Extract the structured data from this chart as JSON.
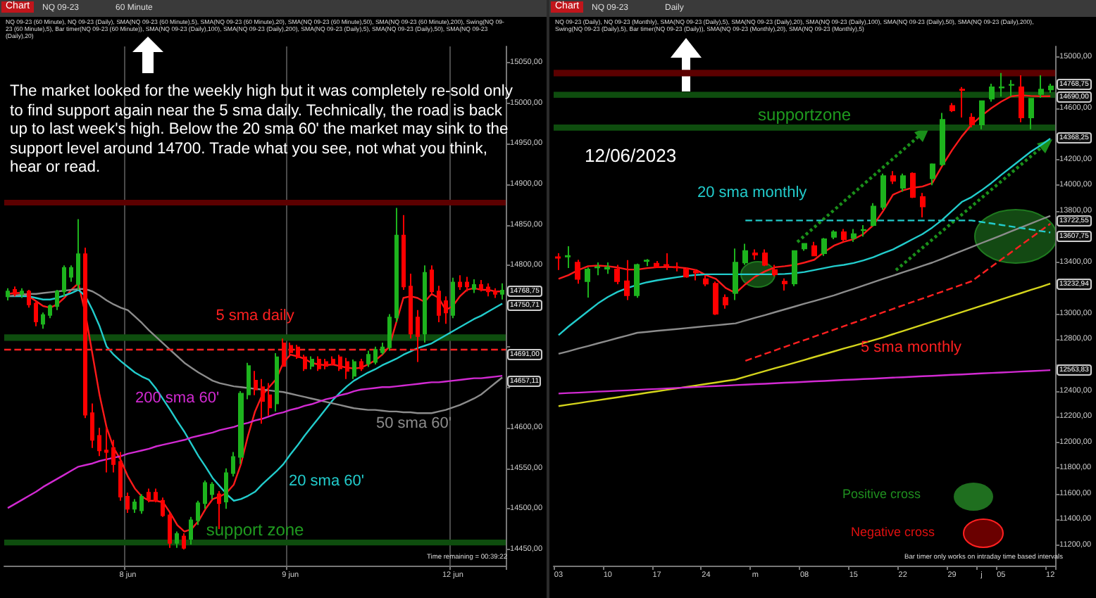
{
  "chart_data": [
    {
      "type": "candlestick",
      "categories": [
        null,
        null,
        null,
        null,
        null,
        null,
        null,
        null,
        null,
        null,
        null,
        null,
        null,
        null,
        null,
        null,
        null,
        "8 jun",
        null,
        null,
        null,
        null,
        null,
        null,
        null,
        null,
        null,
        null,
        null,
        null,
        null,
        null,
        null,
        null,
        null,
        null,
        null,
        null,
        null,
        null,
        "9 jun",
        null,
        null,
        null,
        null,
        null,
        null,
        null,
        null,
        null,
        null,
        null,
        null,
        null,
        null,
        null,
        null,
        null,
        null,
        null,
        null,
        null,
        null,
        "12 jun",
        null,
        null,
        null,
        null,
        null,
        null,
        null
      ],
      "ohlc": [
        [
          14762,
          14772,
          14757,
          14768
        ],
        [
          14770,
          14774,
          14762,
          14765
        ],
        [
          14765,
          14772,
          14760,
          14768
        ],
        [
          14768,
          14770,
          14748,
          14752
        ],
        [
          14753,
          14756,
          14725,
          14731
        ],
        [
          14728,
          14742,
          14722,
          14739
        ],
        [
          14739,
          14752,
          14735,
          14750
        ],
        [
          14750,
          14770,
          14745,
          14768
        ],
        [
          14768,
          14800,
          14762,
          14797
        ],
        [
          14786,
          14800,
          14780,
          14797
        ],
        [
          14777,
          14857,
          14770,
          14814
        ],
        [
          14814,
          14822,
          14612,
          14616
        ],
        [
          14618,
          14630,
          14575,
          14585
        ],
        [
          14590,
          14600,
          14565,
          14572
        ],
        [
          14572,
          14600,
          14545,
          14570
        ],
        [
          14575,
          14585,
          14545,
          14555
        ],
        [
          14558,
          14570,
          14510,
          14515
        ],
        [
          14515,
          14520,
          14495,
          14500
        ],
        [
          14500,
          14512,
          14495,
          14508
        ],
        [
          14498,
          14518,
          14494,
          14515
        ],
        [
          14520,
          14525,
          14508,
          14512
        ],
        [
          14520,
          14525,
          14508,
          14510
        ],
        [
          14510,
          14514,
          14490,
          14492
        ],
        [
          14492,
          14495,
          14452,
          14458
        ],
        [
          14458,
          14472,
          14452,
          14469
        ],
        [
          14466,
          14470,
          14450,
          14452
        ],
        [
          14463,
          14490,
          14456,
          14486
        ],
        [
          14486,
          14510,
          14480,
          14507
        ],
        [
          14507,
          14535,
          14500,
          14532
        ],
        [
          14518,
          14533,
          14512,
          14530
        ],
        [
          14518,
          14522,
          14475,
          14507
        ],
        [
          14509,
          14550,
          14500,
          14544
        ],
        [
          14544,
          14570,
          14540,
          14564
        ],
        [
          14564,
          14645,
          14555,
          14642
        ],
        [
          14641,
          14680,
          14635,
          14676
        ],
        [
          14658,
          14670,
          14640,
          14647
        ],
        [
          14650,
          14660,
          14605,
          14633
        ],
        [
          14640,
          14655,
          14615,
          14625
        ],
        [
          14630,
          14692,
          14620,
          14687
        ],
        [
          14704,
          14710,
          14676,
          14676
        ],
        [
          14701,
          14705,
          14690,
          14693
        ],
        [
          14699,
          14702,
          14685,
          14687
        ],
        [
          14687,
          14690,
          14670,
          14673
        ],
        [
          14676,
          14688,
          14672,
          14684
        ],
        [
          14684,
          14688,
          14670,
          14673
        ],
        [
          14681,
          14685,
          14672,
          14676
        ],
        [
          14684,
          14688,
          14677,
          14679
        ],
        [
          14687,
          14690,
          14670,
          14673
        ],
        [
          14681,
          14686,
          14660,
          14670
        ],
        [
          14664,
          14684,
          14660,
          14681
        ],
        [
          14681,
          14685,
          14670,
          14673
        ],
        [
          14679,
          14695,
          14675,
          14690
        ],
        [
          14681,
          14700,
          14678,
          14696
        ],
        [
          14693,
          14705,
          14690,
          14699
        ],
        [
          14699,
          14740,
          14695,
          14736
        ],
        [
          14736,
          14871,
          14730,
          14837
        ],
        [
          14837,
          14862,
          14770,
          14774
        ],
        [
          14774,
          14790,
          14710,
          14716
        ],
        [
          14736,
          14745,
          14681,
          14713
        ],
        [
          14716,
          14800,
          14705,
          14791
        ],
        [
          14794,
          14800,
          14765,
          14768
        ],
        [
          14768,
          14775,
          14730,
          14739
        ],
        [
          14756,
          14762,
          14728,
          14742
        ],
        [
          14739,
          14785,
          14735,
          14779
        ],
        [
          14779,
          14788,
          14770,
          14774
        ],
        [
          14779,
          14786,
          14768,
          14774
        ],
        [
          14771,
          14783,
          14766,
          14776
        ],
        [
          14776,
          14782,
          14768,
          14771
        ],
        [
          14773,
          14778,
          14762,
          14768
        ],
        [
          14768,
          14772,
          14760,
          14765
        ],
        [
          14765,
          14778,
          14758,
          14769
        ]
      ],
      "colors": [
        "#1db31d",
        "#ff0000",
        "#1db31d",
        "#ff0000",
        "#ff0000",
        "#1db31d",
        "#1db31d",
        "#1db31d",
        "#1db31d",
        "#1db31d",
        "#1db31d",
        "#ff0000",
        "#ff0000",
        "#ff0000",
        "#ff0000",
        "#ff0000",
        "#ff0000",
        "#ff0000",
        "#1db31d",
        "#1db31d",
        "#ff0000",
        "#ff0000",
        "#ff0000",
        "#ff0000",
        "#1db31d",
        "#ff0000",
        "#1db31d",
        "#1db31d",
        "#1db31d",
        "#1db31d",
        "#ff0000",
        "#1db31d",
        "#1db31d",
        "#1db31d",
        "#1db31d",
        "#ff0000",
        "#ff0000",
        "#ff0000",
        "#1db31d",
        "#ff0000",
        "#ff0000",
        "#ff0000",
        "#ff0000",
        "#1db31d",
        "#ff0000",
        "#ff0000",
        "#ff0000",
        "#ff0000",
        "#ff0000",
        "#1db31d",
        "#ff0000",
        "#1db31d",
        "#1db31d",
        "#1db31d",
        "#1db31d",
        "#1db31d",
        "#ff0000",
        "#ff0000",
        "#ff0000",
        "#1db31d",
        "#ff0000",
        "#ff0000",
        "#ff0000",
        "#1db31d",
        "#ff0000",
        "#ff0000",
        "#1db31d",
        "#ff0000",
        "#ff0000",
        "#ff0000",
        "#1db31d"
      ],
      "series": [
        {
          "type": "line",
          "color": "#ff1a1a",
          "values": [
            14765,
            14766,
            14766,
            14762,
            14756,
            14750,
            14748,
            14752,
            14760,
            14770,
            14778,
            14740,
            14690,
            14640,
            14600,
            14575,
            14560,
            14540,
            14525,
            14515,
            14510,
            14510,
            14508,
            14495,
            14480,
            14472,
            14475,
            14485,
            14500,
            14512,
            14515,
            14520,
            14530,
            14555,
            14590,
            14620,
            14640,
            14650,
            14660,
            14680,
            14690,
            14688,
            14685,
            14680,
            14678,
            14677,
            14678,
            14676,
            14674,
            14673,
            14674,
            14678,
            14683,
            14690,
            14700,
            14730,
            14760,
            14762,
            14760,
            14755,
            14765,
            14760,
            14745,
            14750,
            14762,
            14770,
            14772,
            14770,
            14770,
            14768,
            14768
          ]
        },
        {
          "type": "line",
          "name": "20 sma 60'",
          "color": "#22cccc",
          "values": [
            14762,
            14762,
            14762,
            14762,
            14760,
            14758,
            14758,
            14760,
            14763,
            14766,
            14770,
            14762,
            14745,
            14725,
            14700,
            14690,
            14682,
            14675,
            14668,
            14663,
            14659,
            14648,
            14635,
            14622,
            14608,
            14595,
            14580,
            14565,
            14552,
            14538,
            14528,
            14518,
            14510,
            14512,
            14516,
            14521,
            14530,
            14538,
            14546,
            14555,
            14567,
            14578,
            14590,
            14601,
            14612,
            14623,
            14634,
            14643,
            14651,
            14658,
            14663,
            14668,
            14672,
            14677,
            14681,
            14685,
            14690,
            14694,
            14698,
            14701,
            14704,
            14709,
            14714,
            14719,
            14724,
            14729,
            14734,
            14738,
            14743,
            14748,
            14753
          ]
        },
        {
          "type": "line",
          "name": "50 sma 60'",
          "color": "#8c8c8c",
          "values": [
            14762,
            14763,
            14764,
            14765,
            14765,
            14766,
            14767,
            14768,
            14769,
            14770,
            14771,
            14771,
            14768,
            14763,
            14757,
            14752,
            14748,
            14745,
            14737,
            14729,
            14720,
            14712,
            14704,
            14696,
            14688,
            14680,
            14674,
            14668,
            14663,
            14658,
            14655,
            14653,
            14651,
            14650,
            14649,
            14648,
            14647,
            14646,
            14645,
            14644,
            14642,
            14640,
            14638,
            14636,
            14634,
            14632,
            14630,
            14628,
            14626,
            14624,
            14623,
            14622,
            14622,
            14621,
            14620,
            14620,
            14619,
            14619,
            14618,
            14618,
            14618,
            14620,
            14622,
            14625,
            14628,
            14632,
            14636,
            14641,
            14648,
            14655,
            14662
          ]
        },
        {
          "type": "line",
          "name": "200 sma 60'",
          "color": "#d22ad2",
          "values": [
            14501,
            14506,
            14511,
            14516,
            14521,
            14527,
            14532,
            14537,
            14542,
            14547,
            14552,
            14554,
            14556,
            14559,
            14561,
            14563,
            14565,
            14568,
            14570,
            14572,
            14574,
            14577,
            14579,
            14581,
            14583,
            14585,
            14588,
            14590,
            14592,
            14594,
            14597,
            14599,
            14601,
            14604,
            14606,
            14609,
            14611,
            14614,
            14617,
            14619,
            14622,
            14624,
            14627,
            14629,
            14632,
            14635,
            14637,
            14640,
            14642,
            14645,
            14647,
            14648,
            14649,
            14650,
            14650,
            14651,
            14652,
            14653,
            14654,
            14655,
            14656,
            14656,
            14657,
            14658,
            14659,
            14660,
            14661,
            14661,
            14662,
            14663,
            14664
          ]
        }
      ],
      "ylim": [
        14430,
        15070
      ],
      "yticks": [
        {
          "value": 14450,
          "label": "14450,00"
        },
        {
          "value": 14500,
          "label": "14500,00"
        },
        {
          "value": 14550,
          "label": "14550,00"
        },
        {
          "value": 14600,
          "label": "14600,00"
        },
        {
          "value": 14650,
          "label": null
        },
        {
          "value": 14700,
          "label": null
        },
        {
          "value": 14750,
          "label": null
        },
        {
          "value": 14800,
          "label": "14800,00"
        },
        {
          "value": 14850,
          "label": "14850,00"
        },
        {
          "value": 14900,
          "label": "14900,00"
        },
        {
          "value": 14950,
          "label": "14950,00"
        },
        {
          "value": 15000,
          "label": "15000,00"
        },
        {
          "value": 15050,
          "label": "15050,00"
        }
      ],
      "grid": "x",
      "ref_lines": [
        {
          "axis": "y",
          "value": 14697,
          "label": "5 sma daily",
          "color": "#ff2020",
          "line_style": "dashed"
        }
      ],
      "bands": [
        {
          "axis": "y",
          "from": 14874,
          "to": 14881,
          "color": "#5c0000"
        },
        {
          "axis": "y",
          "from": 14707,
          "to": 14715,
          "color": "#0e4d0e"
        },
        {
          "axis": "y",
          "from": 14455,
          "to": 14462,
          "label": "support zone",
          "color": "#0e4d0e"
        }
      ],
      "annotations": [
        "Chart",
        "NQ 09-23",
        "60 Minute",
        "NQ 09-23 (60 Minute), NQ 09-23 (Daily), SMA(NQ 09-23 (60 Minute),5), SMA(NQ 09-23 (60 Minute),20), SMA(NQ 09-23 (60 Minute),50), SMA(NQ 09-23 (60 Minute),200), Swing(NQ 09-23 (60 Minute),5), Bar timer(NQ 09-23 (60 Minute)), SMA(NQ 09-23 (Daily),100), SMA(NQ 09-23 (Daily),200), SMA(NQ 09-23 (Daily),5), SMA(NQ 09-23 (Daily),50), SMA(NQ 09-23 (Daily),20)",
        "The market looked for the weekly high but it was completely re-sold only to find support again near the 5 sma daily. Technically, the road is back up to last week's high. Below the 20 sma 60' the market may sink to the support level around 14700. Trade what you see, not what you think, hear or read.",
        "Time remaining = 00:39:22",
        "14768,75",
        "14750,71",
        "14691,00",
        "14657,11"
      ]
    },
    {
      "type": "candlestick",
      "categories": [
        "03",
        null,
        null,
        null,
        null,
        "10",
        null,
        null,
        null,
        null,
        "17",
        null,
        null,
        null,
        null,
        "24",
        null,
        null,
        null,
        null,
        "m",
        null,
        null,
        null,
        null,
        "08",
        null,
        null,
        null,
        null,
        "15",
        null,
        null,
        null,
        null,
        "22",
        null,
        null,
        null,
        null,
        "29",
        null,
        null,
        "j",
        null,
        "05",
        null,
        null,
        null,
        null,
        "12"
      ],
      "ohlc": [
        [
          13440,
          13470,
          13340,
          13435
        ],
        [
          13445,
          13525,
          13355,
          13450
        ],
        [
          13398,
          13420,
          13234,
          13271
        ],
        [
          13253,
          13360,
          13126,
          13344
        ],
        [
          13360,
          13400,
          13300,
          13362
        ],
        [
          13350,
          13400,
          13310,
          13360
        ],
        [
          13344,
          13380,
          13230,
          13253
        ],
        [
          13253,
          13417,
          13107,
          13143
        ],
        [
          13143,
          13390,
          13125,
          13380
        ],
        [
          13410,
          13425,
          13370,
          13415
        ],
        [
          13390,
          13410,
          13360,
          13362
        ],
        [
          13380,
          13470,
          13340,
          13375
        ],
        [
          13364,
          13400,
          13330,
          13360
        ],
        [
          13344,
          13360,
          13280,
          13289
        ],
        [
          13330,
          13345,
          13260,
          13320
        ],
        [
          13270,
          13300,
          13215,
          13234
        ],
        [
          13234,
          13250,
          12990,
          13000
        ],
        [
          13125,
          13150,
          13040,
          13071
        ],
        [
          13161,
          13507,
          13107,
          13398
        ],
        [
          13398,
          13544,
          13380,
          13489
        ],
        [
          13470,
          13500,
          13420,
          13460
        ],
        [
          13471,
          13500,
          13370,
          13380
        ],
        [
          13340,
          13380,
          13290,
          13307
        ],
        [
          13250,
          13275,
          13180,
          13235
        ],
        [
          13235,
          13490,
          13215,
          13489
        ],
        [
          13507,
          13550,
          13490,
          13544
        ],
        [
          13526,
          13560,
          13450,
          13453
        ],
        [
          13471,
          13590,
          13450,
          13580
        ],
        [
          13598,
          13650,
          13580,
          13635
        ],
        [
          13635,
          13660,
          13560,
          13580
        ],
        [
          13590,
          13660,
          13560,
          13620
        ],
        [
          13650,
          13690,
          13600,
          13653
        ],
        [
          13690,
          13860,
          13680,
          13835
        ],
        [
          13830,
          14090,
          13810,
          14072
        ],
        [
          14072,
          14110,
          14010,
          14035
        ],
        [
          13980,
          14090,
          13950,
          14072
        ],
        [
          14090,
          14100,
          13900,
          13908
        ],
        [
          13908,
          13940,
          13750,
          13835
        ],
        [
          14053,
          14170,
          14000,
          14163
        ],
        [
          14163,
          14563,
          14150,
          14509
        ],
        [
          14618,
          14640,
          14570,
          14582
        ],
        [
          14745,
          14764,
          14527,
          14740
        ],
        [
          14527,
          14560,
          14450,
          14473
        ],
        [
          14473,
          14660,
          14436,
          14654
        ],
        [
          14673,
          14790,
          14650,
          14763
        ],
        [
          14760,
          14873,
          14690,
          14763
        ],
        [
          14780,
          14818,
          14690,
          14782
        ],
        [
          14763,
          14855,
          14490,
          14527
        ],
        [
          14527,
          14673,
          14436,
          14673
        ],
        [
          14709,
          14855,
          14680,
          14745
        ],
        [
          14745,
          14790,
          14720,
          14769
        ]
      ],
      "colors": [
        "#ff0000",
        "#1db31d",
        "#ff0000",
        "#1db31d",
        "#1db31d",
        "#1db31d",
        "#ff0000",
        "#ff0000",
        "#1db31d",
        "#1db31d",
        "#ff0000",
        "#ff0000",
        "#ff0000",
        "#ff0000",
        "#ff0000",
        "#ff0000",
        "#ff0000",
        "#ff0000",
        "#1db31d",
        "#1db31d",
        "#ff0000",
        "#ff0000",
        "#ff0000",
        "#ff0000",
        "#1db31d",
        "#1db31d",
        "#ff0000",
        "#1db31d",
        "#1db31d",
        "#ff0000",
        "#1db31d",
        "#1db31d",
        "#1db31d",
        "#1db31d",
        "#ff0000",
        "#1db31d",
        "#ff0000",
        "#ff0000",
        "#1db31d",
        "#1db31d",
        "#ff0000",
        "#ff0000",
        "#ff0000",
        "#1db31d",
        "#1db31d",
        "#1db31d",
        "#1db31d",
        "#ff0000",
        "#1db31d",
        "#1db31d",
        "#1db31d"
      ],
      "series": [
        {
          "type": "line",
          "color": "#ff1a1a",
          "values": [
            13271,
            13300,
            13340,
            13370,
            13375,
            13370,
            13360,
            13344,
            13344,
            13355,
            13362,
            13365,
            13362,
            13355,
            13340,
            13300,
            13271,
            13200,
            13161,
            13230,
            13289,
            13330,
            13362,
            13370,
            13380,
            13398,
            13420,
            13480,
            13530,
            13560,
            13580,
            13620,
            13689,
            13800,
            13926,
            13960,
            13980,
            13990,
            14017,
            14150,
            14272,
            14380,
            14472,
            14540,
            14600,
            14650,
            14691,
            14700,
            14695,
            14692,
            14693
          ]
        },
        {
          "type": "line",
          "color": "#22cccc",
          "values": [
            12834,
            12900,
            12960,
            13020,
            13080,
            13130,
            13170,
            13200,
            13225,
            13245,
            13260,
            13272,
            13284,
            13295,
            13302,
            13307,
            13307,
            13307,
            13307,
            13307,
            13307,
            13307,
            13307,
            13310,
            13315,
            13325,
            13340,
            13355,
            13370,
            13380,
            13395,
            13415,
            13440,
            13471,
            13500,
            13540,
            13580,
            13620,
            13671,
            13730,
            13800,
            13870,
            13908,
            13960,
            14017,
            14080,
            14140,
            14200,
            14260,
            14310,
            14363
          ]
        },
        {
          "type": "line",
          "color": "#8c8c8c",
          "values": [
            12688,
            12708,
            12729,
            12749,
            12770,
            12790,
            12811,
            12831,
            12852,
            12859,
            12867,
            12874,
            12881,
            12888,
            12896,
            12903,
            12910,
            12918,
            12925,
            12947,
            12969,
            12990,
            13012,
            13034,
            13056,
            13078,
            13099,
            13121,
            13143,
            13169,
            13194,
            13220,
            13245,
            13271,
            13296,
            13322,
            13347,
            13373,
            13398,
            13428,
            13459,
            13489,
            13519,
            13550,
            13580,
            13610,
            13641,
            13671,
            13701,
            13732,
            13762
          ]
        },
        {
          "type": "line",
          "color": "#d4d41c",
          "values": [
            12281,
            12293,
            12304,
            12316,
            12327,
            12339,
            12350,
            12362,
            12373,
            12385,
            12396,
            12408,
            12419,
            12431,
            12442,
            12454,
            12465,
            12477,
            12488,
            12510,
            12532,
            12554,
            12576,
            12597,
            12619,
            12641,
            12663,
            12685,
            12707,
            12729,
            12750,
            12772,
            12794,
            12816,
            12841,
            12865,
            12890,
            12914,
            12939,
            12964,
            12988,
            13013,
            13037,
            13062,
            13086,
            13111,
            13136,
            13160,
            13185,
            13209,
            13234
          ]
        },
        {
          "type": "line",
          "color": "#d22ad2",
          "values": [
            12379,
            12383,
            12386,
            12390,
            12394,
            12397,
            12401,
            12404,
            12408,
            12412,
            12415,
            12419,
            12423,
            12426,
            12430,
            12434,
            12437,
            12441,
            12445,
            12448,
            12452,
            12455,
            12459,
            12463,
            12466,
            12470,
            12474,
            12477,
            12481,
            12485,
            12488,
            12492,
            12495,
            12499,
            12503,
            12506,
            12510,
            12514,
            12517,
            12521,
            12525,
            12528,
            12532,
            12536,
            12539,
            12543,
            12546,
            12550,
            12554,
            12557,
            12561
          ]
        },
        {
          "type": "line",
          "name": "5 sma monthly",
          "color": "#ff2020",
          "line_style": "dashed",
          "values": [
            null,
            null,
            null,
            null,
            null,
            null,
            null,
            null,
            null,
            null,
            null,
            null,
            null,
            null,
            null,
            null,
            null,
            null,
            null,
            12634,
            12661,
            12688,
            12715,
            12742,
            12769,
            12795,
            12822,
            12849,
            12876,
            12903,
            12930,
            12957,
            12984,
            13011,
            13038,
            13065,
            13092,
            13118,
            13145,
            13172,
            13199,
            13226,
            13253,
            13309,
            13365,
            13421,
            13477,
            13533,
            13589,
            13644,
            13700
          ]
        },
        {
          "type": "line",
          "name": "20 sma monthly",
          "color": "#22cccc",
          "line_style": "dashed",
          "values": [
            null,
            null,
            null,
            null,
            null,
            null,
            null,
            null,
            null,
            null,
            null,
            null,
            null,
            null,
            null,
            null,
            null,
            null,
            null,
            13726,
            13726,
            13726,
            13726,
            13726,
            13726,
            13726,
            13726,
            13726,
            13726,
            13726,
            13726,
            13726,
            13726,
            13726,
            13726,
            13726,
            13726,
            13726,
            13726,
            13726,
            13726,
            13726,
            13726,
            13714,
            13703,
            13691,
            13679,
            13667,
            13656,
            13644,
            13632
          ]
        }
      ],
      "ylim": [
        11040,
        15080
      ],
      "yticks": [
        {
          "value": 11200,
          "label": "11200,00"
        },
        {
          "value": 11400,
          "label": "11400,00"
        },
        {
          "value": 11600,
          "label": "11600,00"
        },
        {
          "value": 11800,
          "label": "11800,00"
        },
        {
          "value": 12000,
          "label": "12000,00"
        },
        {
          "value": 12200,
          "label": "12200,00"
        },
        {
          "value": 12400,
          "label": "12400,00"
        },
        {
          "value": 12600,
          "label": null
        },
        {
          "value": 12800,
          "label": "12800,00"
        },
        {
          "value": 13000,
          "label": "13000,00"
        },
        {
          "value": 13200,
          "label": null
        },
        {
          "value": 13400,
          "label": "13400,00"
        },
        {
          "value": 13600,
          "label": null
        },
        {
          "value": 13800,
          "label": "13800,00"
        },
        {
          "value": 14000,
          "label": "14000,00"
        },
        {
          "value": 14200,
          "label": "14200,00"
        },
        {
          "value": 14400,
          "label": null
        },
        {
          "value": 14600,
          "label": "14600,00"
        },
        {
          "value": 14800,
          "label": null
        },
        {
          "value": 15000,
          "label": "15000,00"
        }
      ],
      "bands": [
        {
          "axis": "y",
          "from": 14847,
          "to": 14898,
          "color": "#5c0000"
        },
        {
          "axis": "y",
          "from": 14680,
          "to": 14727,
          "color": "#0e4d0e"
        },
        {
          "axis": "y",
          "from": 14425,
          "to": 14472,
          "label": "supportzone",
          "color": "#0e4d0e"
        }
      ],
      "annotations": [
        "Chart",
        "NQ 09-23",
        "Daily",
        "NQ 09-23 (Daily), NQ 09-23 (Monthly), SMA(NQ 09-23 (Daily),5), SMA(NQ 09-23 (Daily),20), SMA(NQ 09-23 (Daily),100), SMA(NQ 09-23 (Daily),50), SMA(NQ 09-23 (Daily),200), Swing(NQ 09-23 (Daily),5), Bar timer(NQ 09-23 (Daily)), SMA(NQ 09-23 (Monthly),20), SMA(NQ 09-23 (Monthly),5)",
        "12/06/2023",
        "Positive cross",
        "Negative cross",
        "Bar timer only works on intraday time based intervals",
        "14768,75",
        "14690,00",
        "14368,25",
        "13722,55",
        "13607,75",
        "13232,94",
        "12563,83"
      ]
    }
  ]
}
